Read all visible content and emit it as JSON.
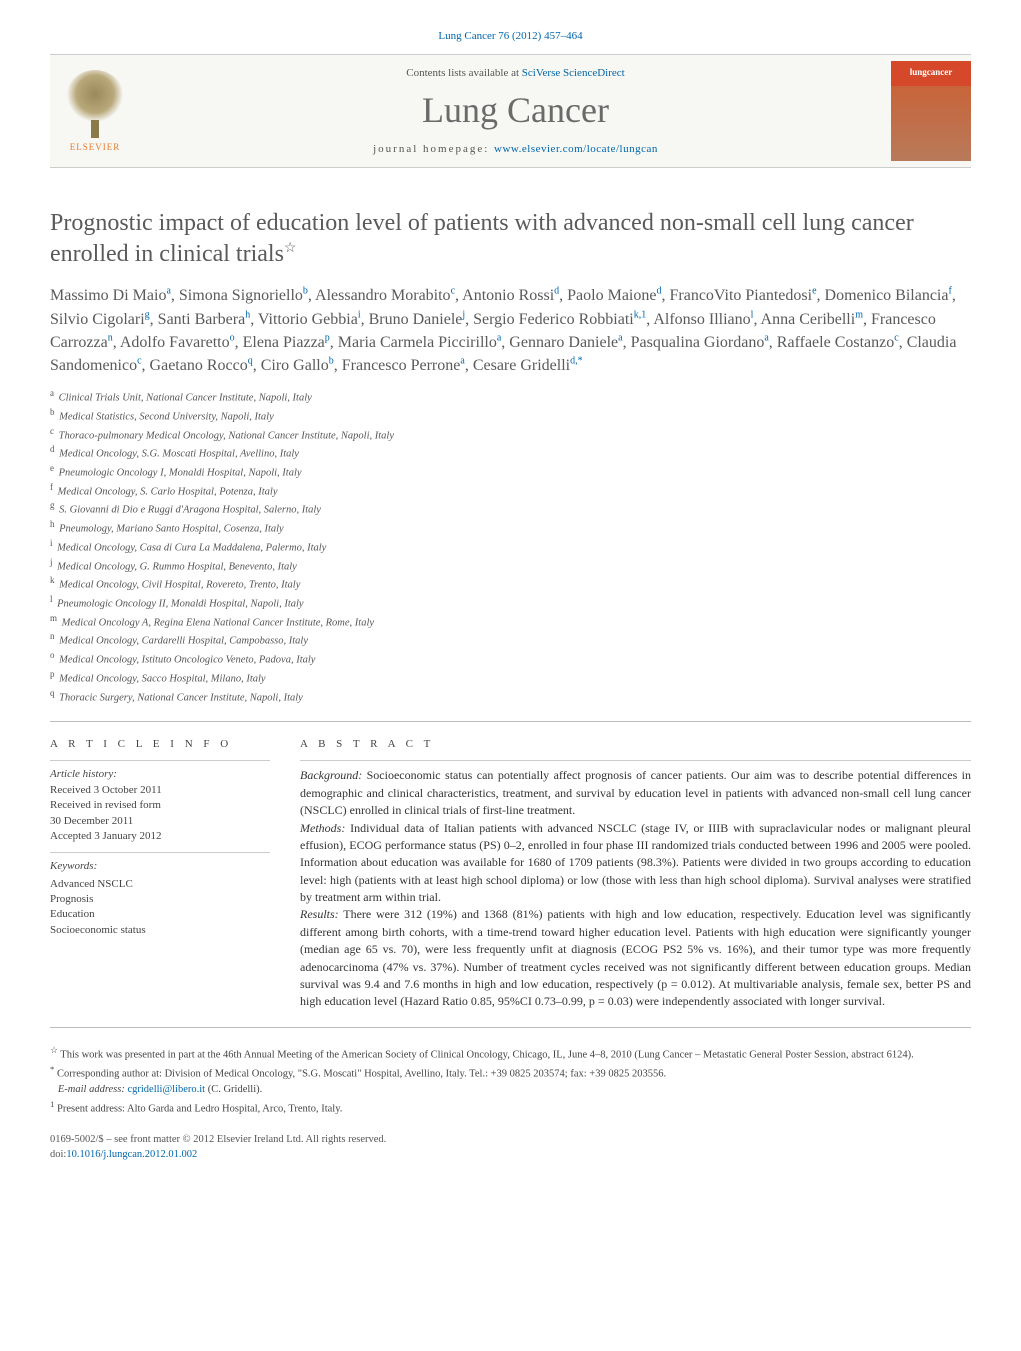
{
  "journal_ref": "Lung Cancer 76 (2012) 457–464",
  "header": {
    "contents_prefix": "Contents lists available at ",
    "contents_link": "SciVerse ScienceDirect",
    "journal_title": "Lung Cancer",
    "homepage_prefix": "journal homepage: ",
    "homepage_link": "www.elsevier.com/locate/lungcan",
    "elsevier_label": "ELSEVIER"
  },
  "article": {
    "title": "Prognostic impact of education level of patients with advanced non-small cell lung cancer enrolled in clinical trials",
    "title_star": "☆",
    "authors_html": "Massimo Di Maio<sup>a</sup>, Simona Signoriello<sup>b</sup>, Alessandro Morabito<sup>c</sup>, Antonio Rossi<sup>d</sup>, Paolo Maione<sup>d</sup>, FrancoVito Piantedosi<sup>e</sup>, Domenico Bilancia<sup>f</sup>, Silvio Cigolari<sup>g</sup>, Santi Barbera<sup>h</sup>, Vittorio Gebbia<sup>i</sup>, Bruno Daniele<sup>j</sup>, Sergio Federico Robbiati<sup>k,1</sup>, Alfonso Illiano<sup>l</sup>, Anna Ceribelli<sup>m</sup>, Francesco Carrozza<sup>n</sup>, Adolfo Favaretto<sup>o</sup>, Elena Piazza<sup>p</sup>, Maria Carmela Piccirillo<sup>a</sup>, Gennaro Daniele<sup>a</sup>, Pasqualina Giordano<sup>a</sup>, Raffaele Costanzo<sup>c</sup>, Claudia Sandomenico<sup>c</sup>, Gaetano Rocco<sup>q</sup>, Ciro Gallo<sup>b</sup>, Francesco Perrone<sup>a</sup>, Cesare Gridelli<sup>d,*</sup>"
  },
  "affiliations": [
    {
      "sup": "a",
      "text": "Clinical Trials Unit, National Cancer Institute, Napoli, Italy"
    },
    {
      "sup": "b",
      "text": "Medical Statistics, Second University, Napoli, Italy"
    },
    {
      "sup": "c",
      "text": "Thoraco-pulmonary Medical Oncology, National Cancer Institute, Napoli, Italy"
    },
    {
      "sup": "d",
      "text": "Medical Oncology, S.G. Moscati Hospital, Avellino, Italy"
    },
    {
      "sup": "e",
      "text": "Pneumologic Oncology I, Monaldi Hospital, Napoli, Italy"
    },
    {
      "sup": "f",
      "text": "Medical Oncology, S. Carlo Hospital, Potenza, Italy"
    },
    {
      "sup": "g",
      "text": "S. Giovanni di Dio e Ruggi d'Aragona Hospital, Salerno, Italy"
    },
    {
      "sup": "h",
      "text": "Pneumology, Mariano Santo Hospital, Cosenza, Italy"
    },
    {
      "sup": "i",
      "text": "Medical Oncology, Casa di Cura La Maddalena, Palermo, Italy"
    },
    {
      "sup": "j",
      "text": "Medical Oncology, G. Rummo Hospital, Benevento, Italy"
    },
    {
      "sup": "k",
      "text": "Medical Oncology, Civil Hospital, Rovereto, Trento, Italy"
    },
    {
      "sup": "l",
      "text": "Pneumologic Oncology II, Monaldi Hospital, Napoli, Italy"
    },
    {
      "sup": "m",
      "text": "Medical Oncology A, Regina Elena National Cancer Institute, Rome, Italy"
    },
    {
      "sup": "n",
      "text": "Medical Oncology, Cardarelli Hospital, Campobasso, Italy"
    },
    {
      "sup": "o",
      "text": "Medical Oncology, Istituto Oncologico Veneto, Padova, Italy"
    },
    {
      "sup": "p",
      "text": "Medical Oncology, Sacco Hospital, Milano, Italy"
    },
    {
      "sup": "q",
      "text": "Thoracic Surgery, National Cancer Institute, Napoli, Italy"
    }
  ],
  "article_info": {
    "heading": "A R T I C L E   I N F O",
    "history_label": "Article history:",
    "received": "Received 3 October 2011",
    "revised1": "Received in revised form",
    "revised2": "30 December 2011",
    "accepted": "Accepted 3 January 2012",
    "keywords_label": "Keywords:",
    "keywords": [
      "Advanced NSCLC",
      "Prognosis",
      "Education",
      "Socioeconomic status"
    ]
  },
  "abstract": {
    "heading": "A B S T R A C T",
    "background_label": "Background:",
    "background": " Socioeconomic status can potentially affect prognosis of cancer patients. Our aim was to describe potential differences in demographic and clinical characteristics, treatment, and survival by education level in patients with advanced non-small cell lung cancer (NSCLC) enrolled in clinical trials of first-line treatment.",
    "methods_label": "Methods:",
    "methods": " Individual data of Italian patients with advanced NSCLC (stage IV, or IIIB with supraclavicular nodes or malignant pleural effusion), ECOG performance status (PS) 0–2, enrolled in four phase III randomized trials conducted between 1996 and 2005 were pooled. Information about education was available for 1680 of 1709 patients (98.3%). Patients were divided in two groups according to education level: high (patients with at least high school diploma) or low (those with less than high school diploma). Survival analyses were stratified by treatment arm within trial.",
    "results_label": "Results:",
    "results": " There were 312 (19%) and 1368 (81%) patients with high and low education, respectively. Education level was significantly different among birth cohorts, with a time-trend toward higher education level. Patients with high education were significantly younger (median age 65 vs. 70), were less frequently unfit at diagnosis (ECOG PS2 5% vs. 16%), and their tumor type was more frequently adenocarcinoma (47% vs. 37%). Number of treatment cycles received was not significantly different between education groups. Median survival was 9.4 and 7.6 months in high and low education, respectively (p = 0.012). At multivariable analysis, female sex, better PS and high education level (Hazard Ratio 0.85, 95%CI 0.73–0.99, p = 0.03) were independently associated with longer survival."
  },
  "footnotes": {
    "star_sym": "☆",
    "star": " This work was presented in part at the 46th Annual Meeting of the American Society of Clinical Oncology, Chicago, IL, June 4–8, 2010 (Lung Cancer – Metastatic General Poster Session, abstract 6124).",
    "corr_sym": "*",
    "corr": " Corresponding author at: Division of Medical Oncology, \"S.G. Moscati\" Hospital, Avellino, Italy. Tel.: +39 0825 203574; fax: +39 0825 203556.",
    "email_label": "E-mail address: ",
    "email": "cgridelli@libero.it",
    "email_suffix": " (C. Gridelli).",
    "present_sym": "1",
    "present": " Present address: Alto Garda and Ledro Hospital, Arco, Trento, Italy."
  },
  "bottom": {
    "issn": "0169-5002/$ – see front matter © 2012 Elsevier Ireland Ltd. All rights reserved.",
    "doi_label": "doi:",
    "doi": "10.1016/j.lungcan.2012.01.002"
  },
  "colors": {
    "link": "#0066aa",
    "text": "#333333",
    "heading": "#5a5a5a",
    "rule": "#bbbbbb",
    "band_bg": "#f7f7f4",
    "elsevier_orange": "#e67a2a"
  }
}
